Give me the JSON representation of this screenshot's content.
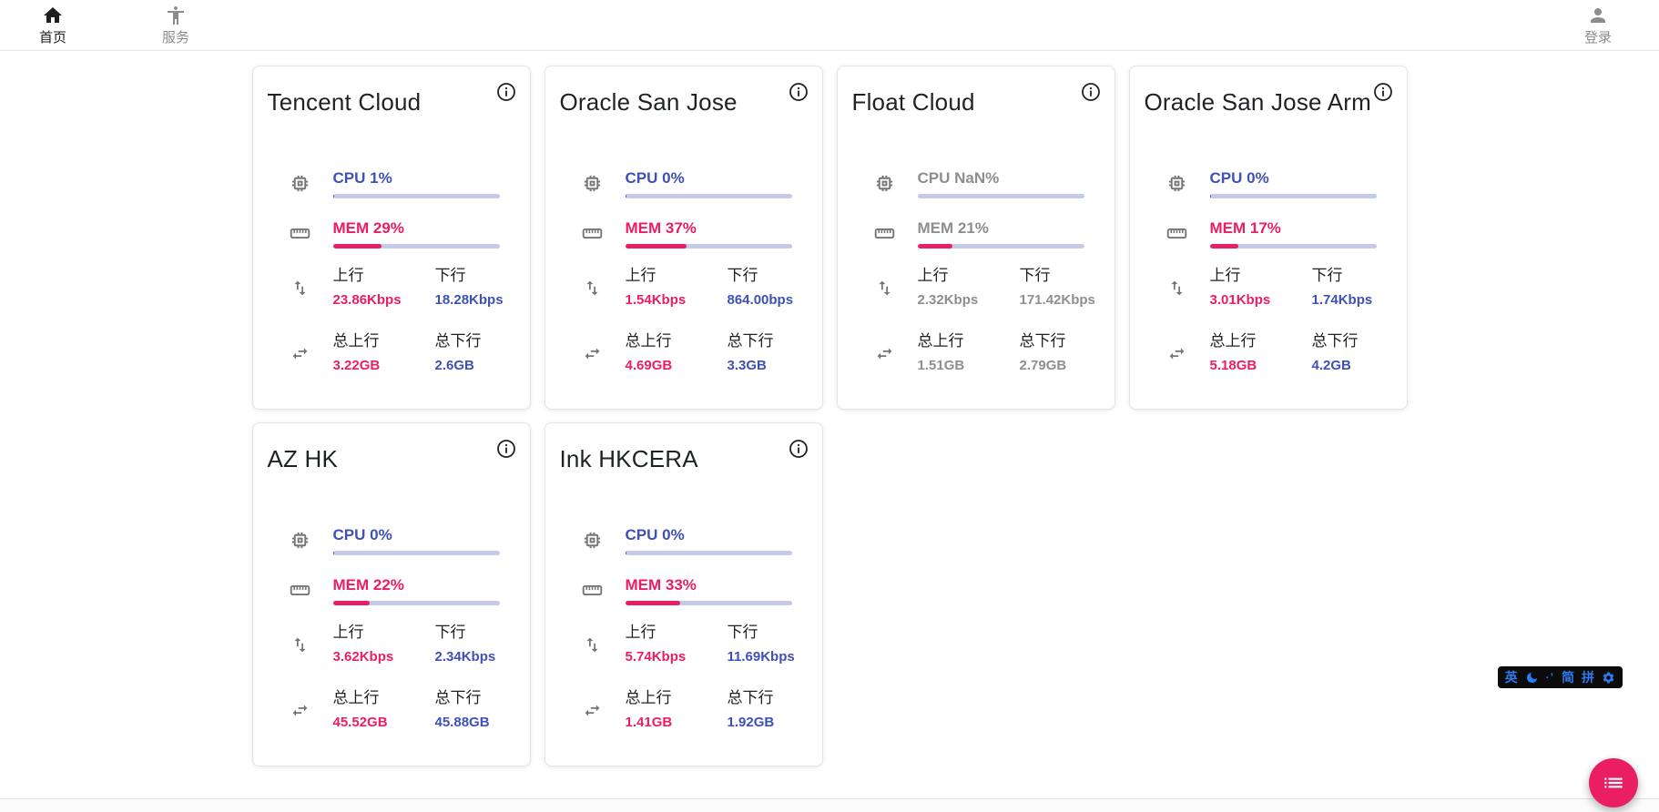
{
  "navbar": {
    "home_label": "首页",
    "services_label": "服务",
    "login_label": "登录"
  },
  "labels": {
    "up": "上行",
    "down": "下行",
    "total_up": "总上行",
    "total_down": "总下行"
  },
  "servers": [
    {
      "name": "Tencent Cloud",
      "cpu": "CPU 1%",
      "cpu_pct": 1,
      "mem": "MEM 29%",
      "mem_pct": 29,
      "up": "23.86Kbps",
      "down": "18.28Kbps",
      "total_up": "3.22GB",
      "total_down": "2.6GB",
      "muted": false
    },
    {
      "name": "Oracle San Jose",
      "cpu": "CPU 0%",
      "cpu_pct": 0,
      "mem": "MEM 37%",
      "mem_pct": 37,
      "up": "1.54Kbps",
      "down": "864.00bps",
      "total_up": "4.69GB",
      "total_down": "3.3GB",
      "muted": false
    },
    {
      "name": "Float Cloud",
      "cpu": "CPU NaN%",
      "cpu_pct": null,
      "mem": "MEM 21%",
      "mem_pct": 21,
      "up": "2.32Kbps",
      "down": "171.42Kbps",
      "total_up": "1.51GB",
      "total_down": "2.79GB",
      "muted": true
    },
    {
      "name": "Oracle San Jose Arm",
      "cpu": "CPU 0%",
      "cpu_pct": 0,
      "mem": "MEM 17%",
      "mem_pct": 17,
      "up": "3.01Kbps",
      "down": "1.74Kbps",
      "total_up": "5.18GB",
      "total_down": "4.2GB",
      "muted": false
    },
    {
      "name": "AZ HK",
      "cpu": "CPU 0%",
      "cpu_pct": 0,
      "mem": "MEM 22%",
      "mem_pct": 22,
      "up": "3.62Kbps",
      "down": "2.34Kbps",
      "total_up": "45.52GB",
      "total_down": "45.88GB",
      "muted": false
    },
    {
      "name": "Ink HKCERA",
      "cpu": "CPU 0%",
      "cpu_pct": 0,
      "mem": "MEM 33%",
      "mem_pct": 33,
      "up": "5.74Kbps",
      "down": "11.69Kbps",
      "total_up": "1.41GB",
      "total_down": "1.92GB",
      "muted": false
    }
  ],
  "ime": {
    "english_mode": "英",
    "punctuation": "·’",
    "simplified": "简",
    "pinyin": "拼"
  },
  "colors": {
    "accent_blue": "#3f51b5",
    "accent_pink": "#e91e63",
    "muted_gray": "#8e8e8e",
    "ime_blue": "#2b7cf0",
    "fab_pink": "#e91e63"
  }
}
